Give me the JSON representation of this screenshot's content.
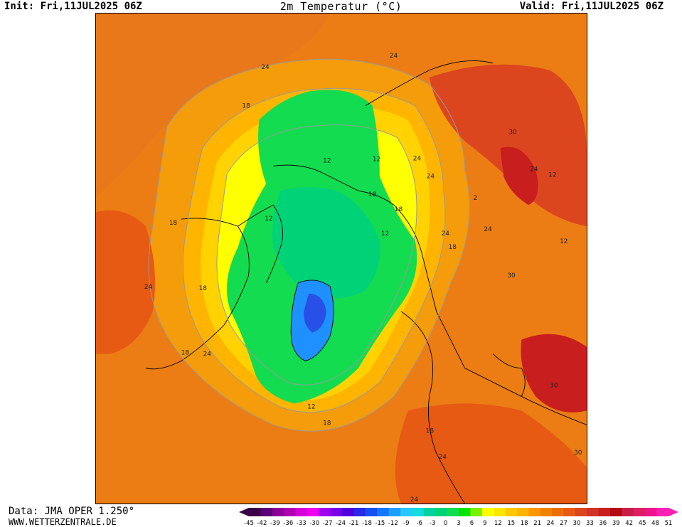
{
  "header": {
    "init": "Init: Fri,11JUL2025 06Z",
    "title": "2m Temperatur (°C)",
    "valid": "Valid: Fri,11JUL2025 06Z"
  },
  "footer": {
    "source": "Data: JMA OPER 1.250°",
    "site": "WWW.WETTERZENTRALE.DE"
  },
  "map": {
    "contour_labels": [
      {
        "text": "24"
      },
      {
        "text": "24"
      },
      {
        "text": "18"
      },
      {
        "text": "24"
      },
      {
        "text": "24"
      },
      {
        "text": "30"
      },
      {
        "text": "24"
      },
      {
        "text": "12"
      },
      {
        "text": "12"
      },
      {
        "text": "12"
      },
      {
        "text": "18"
      },
      {
        "text": "18"
      },
      {
        "text": "18"
      },
      {
        "text": "12"
      },
      {
        "text": "24"
      },
      {
        "text": "24"
      },
      {
        "text": "18"
      },
      {
        "text": "24"
      },
      {
        "text": "18"
      },
      {
        "text": "12"
      },
      {
        "text": "18"
      },
      {
        "text": "12"
      },
      {
        "text": "18"
      },
      {
        "text": "18"
      },
      {
        "text": "30"
      },
      {
        "text": "30"
      },
      {
        "text": "24"
      },
      {
        "text": "30"
      },
      {
        "text": "2"
      },
      {
        "text": "24"
      },
      {
        "text": "12"
      },
      {
        "text": "24"
      }
    ]
  },
  "legend": {
    "colors": [
      "#3a0046",
      "#5a0078",
      "#8a0098",
      "#b000b4",
      "#d800d8",
      "#f000f0",
      "#a000f0",
      "#7800e6",
      "#5000dc",
      "#2828e6",
      "#1450f0",
      "#1478ff",
      "#1ea0ff",
      "#28c8ff",
      "#14dcdc",
      "#00d2a0",
      "#00d278",
      "#14dc50",
      "#00e600",
      "#78f000",
      "#ffff00",
      "#ffe600",
      "#ffc800",
      "#ffb400",
      "#ff9600",
      "#f08200",
      "#eb6e0a",
      "#e65a14",
      "#dc461e",
      "#d23228",
      "#c81e1e",
      "#b40a14",
      "#c81e46",
      "#dc1e64",
      "#f0148c",
      "#ff1eb4"
    ],
    "ticks": [
      "-45",
      "-42",
      "-39",
      "-36",
      "-33",
      "-30",
      "-27",
      "-24",
      "-21",
      "-18",
      "-15",
      "-12",
      "-9",
      "-6",
      "-3",
      "0",
      "3",
      "6",
      "9",
      "12",
      "15",
      "18",
      "21",
      "24",
      "27",
      "30",
      "33",
      "36",
      "39",
      "42",
      "45",
      "48",
      "51"
    ]
  }
}
